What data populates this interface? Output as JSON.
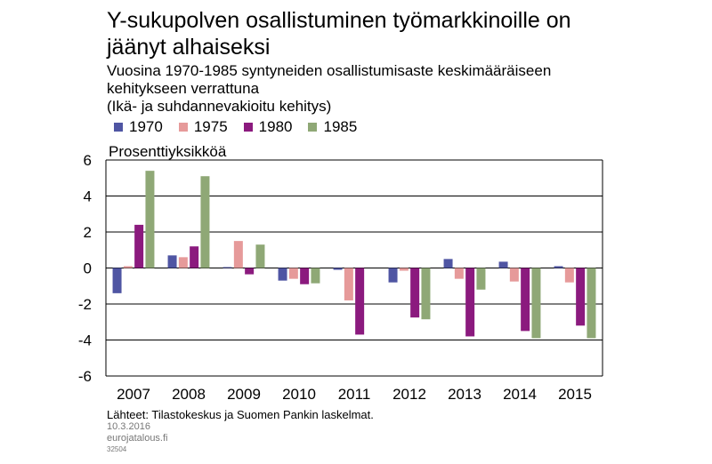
{
  "chart_data": {
    "type": "bar",
    "title": "Y-sukupolven osallistuminen työmarkkinoille on jäänyt alhaiseksi",
    "subtitle": "Vuosina 1970-1985 syntyneiden osallistumisaste keskimääräiseen kehitykseen verrattuna",
    "subtitle2": "(Ikä- ja suhdannevakioitu kehitys)",
    "ylabel": "Prosenttiyksikköä",
    "xlabel": "",
    "categories": [
      "2007",
      "2008",
      "2009",
      "2010",
      "2011",
      "2012",
      "2013",
      "2014",
      "2015"
    ],
    "ylim": [
      -6,
      6
    ],
    "yticks": [
      6,
      4,
      2,
      0,
      -2,
      -4,
      -6
    ],
    "ytick_labels": [
      "6",
      "4",
      "2",
      "0",
      "-2",
      "-4",
      "-6"
    ],
    "series": [
      {
        "name": "1970",
        "color": "#4f55a3",
        "values": [
          -1.4,
          0.7,
          0.05,
          -0.7,
          -0.1,
          -0.8,
          0.5,
          0.35,
          0.1
        ]
      },
      {
        "name": "1975",
        "color": "#e69a9a",
        "values": [
          0.1,
          0.6,
          1.5,
          -0.6,
          -1.8,
          -0.15,
          -0.6,
          -0.75,
          -0.8
        ]
      },
      {
        "name": "1980",
        "color": "#8b1a7e",
        "values": [
          2.4,
          1.2,
          -0.35,
          -0.9,
          -3.7,
          -2.75,
          -3.8,
          -3.5,
          -3.2
        ]
      },
      {
        "name": "1985",
        "color": "#8fa876",
        "values": [
          5.4,
          5.1,
          1.3,
          -0.85,
          0.0,
          -2.85,
          -1.2,
          -3.9,
          -3.9
        ]
      }
    ],
    "legend_position": "top-left",
    "grid": true
  },
  "footer": {
    "sources": "Lähteet: Tilastokeskus ja Suomen Pankin laskelmat.",
    "date": "10.3.2016",
    "site": "eurojatalous.fi",
    "code": "32504"
  }
}
